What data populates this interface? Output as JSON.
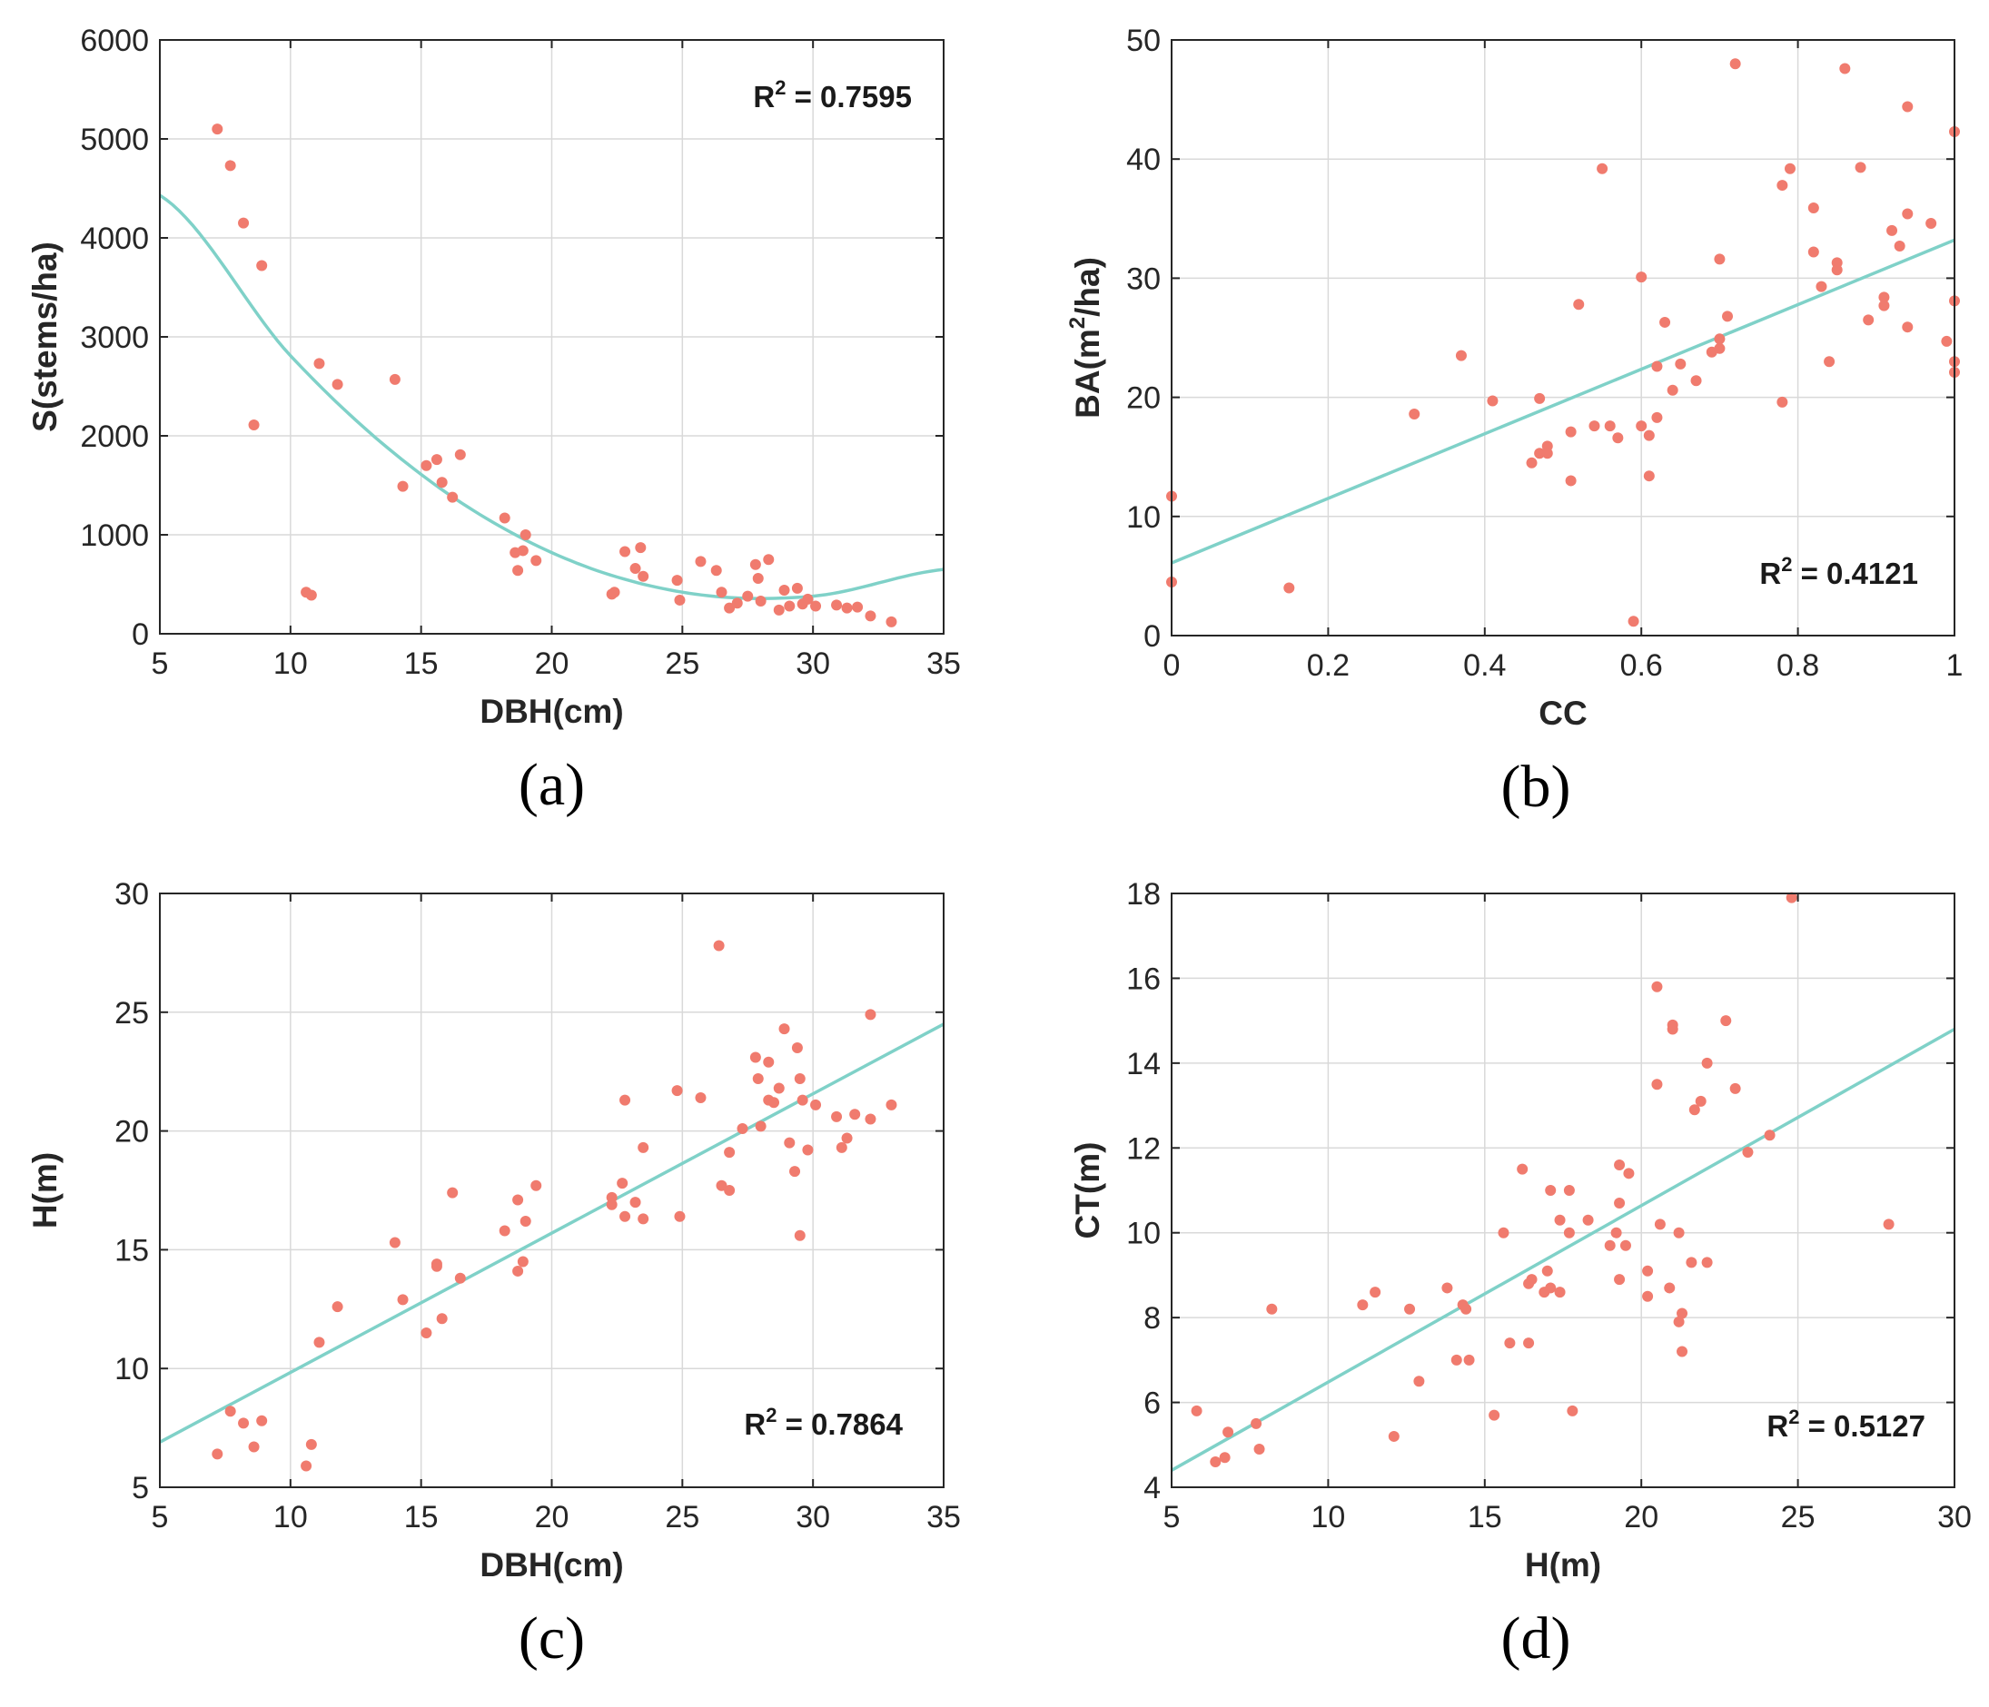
{
  "chart_data": [
    {
      "type": "scatter",
      "panel_label": "(a)",
      "xlabel": "DBH(cm)",
      "ylabel": "S(stems/ha)",
      "xlim": [
        5,
        35
      ],
      "ylim": [
        0,
        6000
      ],
      "xticks": [
        5,
        10,
        15,
        20,
        25,
        30,
        35
      ],
      "yticks": [
        0,
        1000,
        2000,
        3000,
        4000,
        5000,
        6000
      ],
      "annotation": {
        "text": "R² = 0.7595",
        "base": "R",
        "sup": "2",
        "rest": " = 0.7595",
        "placement": "top-right"
      },
      "fit": {
        "kind": "quadratic",
        "x": [
          5,
          10,
          15,
          20,
          25,
          30,
          35
        ],
        "y": [
          4430,
          2810,
          1610,
          820,
          420,
          380,
          650
        ]
      },
      "points": [
        [
          7.2,
          5100
        ],
        [
          7.7,
          4730
        ],
        [
          8.2,
          4150
        ],
        [
          8.9,
          3720
        ],
        [
          8.6,
          2110
        ],
        [
          10.6,
          420
        ],
        [
          10.8,
          390
        ],
        [
          11.1,
          2730
        ],
        [
          11.8,
          2520
        ],
        [
          14,
          2570
        ],
        [
          14.3,
          1490
        ],
        [
          15.2,
          1700
        ],
        [
          15.6,
          1760
        ],
        [
          15.8,
          1530
        ],
        [
          16.2,
          1380
        ],
        [
          16.5,
          1810
        ],
        [
          18.2,
          1170
        ],
        [
          18.6,
          820
        ],
        [
          18.7,
          640
        ],
        [
          18.9,
          840
        ],
        [
          19,
          1000
        ],
        [
          19.4,
          740
        ],
        [
          22.3,
          400
        ],
        [
          22.4,
          420
        ],
        [
          22.8,
          830
        ],
        [
          23.2,
          660
        ],
        [
          23.4,
          870
        ],
        [
          23.5,
          580
        ],
        [
          24.8,
          540
        ],
        [
          24.9,
          340
        ],
        [
          25.7,
          730
        ],
        [
          26.3,
          640
        ],
        [
          26.5,
          420
        ],
        [
          26.8,
          260
        ],
        [
          27.1,
          310
        ],
        [
          27.5,
          380
        ],
        [
          27.8,
          700
        ],
        [
          27.9,
          560
        ],
        [
          28,
          330
        ],
        [
          28.3,
          750
        ],
        [
          28.7,
          240
        ],
        [
          28.9,
          440
        ],
        [
          29.1,
          280
        ],
        [
          29.4,
          460
        ],
        [
          29.6,
          300
        ],
        [
          29.8,
          350
        ],
        [
          30.1,
          280
        ],
        [
          30.9,
          290
        ],
        [
          31.3,
          260
        ],
        [
          31.7,
          270
        ],
        [
          32.2,
          180
        ],
        [
          33,
          120
        ]
      ]
    },
    {
      "type": "scatter",
      "panel_label": "(b)",
      "xlabel": "CC",
      "ylabel": "BA(m²/ha)",
      "ylabel_base": "BA(m",
      "ylabel_sup": "2",
      "ylabel_rest": "/ha)",
      "xlim": [
        0,
        1
      ],
      "ylim": [
        0,
        50
      ],
      "xticks": [
        0,
        0.2,
        0.4,
        0.6,
        0.8,
        1
      ],
      "yticks": [
        0,
        10,
        20,
        30,
        40,
        50
      ],
      "annotation": {
        "text": "R² = 0.4121",
        "base": "R",
        "sup": "2",
        "rest": " = 0.4121",
        "placement": "bottom-right"
      },
      "fit": {
        "kind": "linear",
        "x": [
          0,
          1
        ],
        "y": [
          6.1,
          33.2
        ]
      },
      "points": [
        [
          0,
          11.7
        ],
        [
          0,
          4.5
        ],
        [
          0.15,
          4
        ],
        [
          0.31,
          18.6
        ],
        [
          0.37,
          23.5
        ],
        [
          0.41,
          19.7
        ],
        [
          0.46,
          14.5
        ],
        [
          0.47,
          15.3
        ],
        [
          0.47,
          19.9
        ],
        [
          0.48,
          15.9
        ],
        [
          0.48,
          15.3
        ],
        [
          0.51,
          13
        ],
        [
          0.51,
          17.1
        ],
        [
          0.52,
          27.8
        ],
        [
          0.54,
          17.6
        ],
        [
          0.55,
          39.2
        ],
        [
          0.56,
          17.6
        ],
        [
          0.57,
          16.6
        ],
        [
          0.59,
          1.2
        ],
        [
          0.6,
          17.6
        ],
        [
          0.6,
          30.1
        ],
        [
          0.61,
          16.8
        ],
        [
          0.61,
          13.4
        ],
        [
          0.62,
          18.3
        ],
        [
          0.62,
          22.6
        ],
        [
          0.63,
          26.3
        ],
        [
          0.64,
          20.6
        ],
        [
          0.65,
          22.8
        ],
        [
          0.67,
          21.4
        ],
        [
          0.69,
          23.8
        ],
        [
          0.7,
          24.9
        ],
        [
          0.7,
          24.1
        ],
        [
          0.7,
          31.6
        ],
        [
          0.71,
          26.8
        ],
        [
          0.72,
          48
        ],
        [
          0.78,
          37.8
        ],
        [
          0.78,
          19.6
        ],
        [
          0.79,
          39.2
        ],
        [
          0.82,
          35.9
        ],
        [
          0.82,
          32.2
        ],
        [
          0.83,
          29.3
        ],
        [
          0.84,
          23
        ],
        [
          0.85,
          31.3
        ],
        [
          0.85,
          30.7
        ],
        [
          0.86,
          47.6
        ],
        [
          0.88,
          39.3
        ],
        [
          0.89,
          26.5
        ],
        [
          0.91,
          28.4
        ],
        [
          0.91,
          27.7
        ],
        [
          0.92,
          34
        ],
        [
          0.93,
          32.7
        ],
        [
          0.94,
          35.4
        ],
        [
          0.94,
          25.9
        ],
        [
          0.94,
          44.4
        ],
        [
          0.97,
          34.6
        ],
        [
          0.99,
          24.7
        ],
        [
          1,
          42.3
        ],
        [
          1,
          28.1
        ],
        [
          1,
          23
        ],
        [
          1,
          22.1
        ]
      ]
    },
    {
      "type": "scatter",
      "panel_label": "(c)",
      "xlabel": "DBH(cm)",
      "ylabel": "H(m)",
      "xlim": [
        5,
        35
      ],
      "ylim": [
        5,
        30
      ],
      "xticks": [
        5,
        10,
        15,
        20,
        25,
        30,
        35
      ],
      "yticks": [
        5,
        10,
        15,
        20,
        25,
        30
      ],
      "annotation": {
        "text": "R² = 0.7864",
        "base": "R",
        "sup": "2",
        "rest": " = 0.7864",
        "placement": "bottom-right"
      },
      "fit": {
        "kind": "linear",
        "x": [
          5,
          35
        ],
        "y": [
          6.9,
          24.5
        ]
      },
      "points": [
        [
          7.2,
          6.4
        ],
        [
          7.7,
          8.2
        ],
        [
          8.2,
          7.7
        ],
        [
          8.6,
          6.7
        ],
        [
          8.9,
          7.8
        ],
        [
          10.6,
          5.9
        ],
        [
          10.8,
          6.8
        ],
        [
          11.1,
          11.1
        ],
        [
          11.8,
          12.6
        ],
        [
          14,
          15.3
        ],
        [
          14.3,
          12.9
        ],
        [
          15.2,
          11.5
        ],
        [
          15.6,
          14.4
        ],
        [
          15.6,
          14.3
        ],
        [
          15.8,
          12.1
        ],
        [
          16.2,
          17.4
        ],
        [
          16.5,
          13.8
        ],
        [
          18.2,
          15.8
        ],
        [
          18.7,
          17.1
        ],
        [
          18.7,
          14.1
        ],
        [
          18.9,
          14.5
        ],
        [
          19,
          16.2
        ],
        [
          19.4,
          17.7
        ],
        [
          22.3,
          17.2
        ],
        [
          22.3,
          16.9
        ],
        [
          22.7,
          17.8
        ],
        [
          22.8,
          16.4
        ],
        [
          22.8,
          21.3
        ],
        [
          23.2,
          17
        ],
        [
          23.5,
          19.3
        ],
        [
          23.5,
          16.3
        ],
        [
          24.8,
          21.7
        ],
        [
          24.9,
          16.4
        ],
        [
          25.7,
          21.4
        ],
        [
          26.4,
          27.8
        ],
        [
          26.5,
          17.7
        ],
        [
          26.8,
          17.5
        ],
        [
          26.8,
          19.1
        ],
        [
          27.3,
          20.1
        ],
        [
          27.8,
          23.1
        ],
        [
          27.9,
          22.2
        ],
        [
          28,
          20.2
        ],
        [
          28.3,
          22.9
        ],
        [
          28.3,
          21.3
        ],
        [
          28.5,
          21.2
        ],
        [
          28.7,
          21.8
        ],
        [
          28.9,
          24.3
        ],
        [
          29.1,
          19.5
        ],
        [
          29.3,
          18.3
        ],
        [
          29.4,
          23.5
        ],
        [
          29.5,
          22.2
        ],
        [
          29.5,
          15.6
        ],
        [
          29.6,
          21.3
        ],
        [
          29.8,
          19.2
        ],
        [
          30.1,
          21.1
        ],
        [
          30.9,
          20.6
        ],
        [
          31.1,
          19.3
        ],
        [
          31.3,
          19.7
        ],
        [
          31.6,
          20.7
        ],
        [
          32.2,
          24.9
        ],
        [
          32.2,
          20.5
        ],
        [
          33,
          21.1
        ]
      ]
    },
    {
      "type": "scatter",
      "panel_label": "(d)",
      "xlabel": "H(m)",
      "ylabel": "CT(m)",
      "xlim": [
        5,
        30
      ],
      "ylim": [
        4,
        18
      ],
      "xticks": [
        5,
        10,
        15,
        20,
        25,
        30
      ],
      "yticks": [
        4,
        6,
        8,
        10,
        12,
        14,
        16,
        18
      ],
      "annotation": {
        "text": "R² = 0.5127",
        "base": "R",
        "sup": "2",
        "rest": " = 0.5127",
        "placement": "bottom-right"
      },
      "fit": {
        "kind": "linear",
        "x": [
          5,
          30
        ],
        "y": [
          4.4,
          14.8
        ]
      },
      "points": [
        [
          5.8,
          5.8
        ],
        [
          6.4,
          4.6
        ],
        [
          6.7,
          4.7
        ],
        [
          6.8,
          5.3
        ],
        [
          7.7,
          5.5
        ],
        [
          7.8,
          4.9
        ],
        [
          8.2,
          8.2
        ],
        [
          11.1,
          8.3
        ],
        [
          11.5,
          8.6
        ],
        [
          12.1,
          5.2
        ],
        [
          12.6,
          8.2
        ],
        [
          12.9,
          6.5
        ],
        [
          13.8,
          8.7
        ],
        [
          14.1,
          7
        ],
        [
          14.3,
          8.3
        ],
        [
          14.4,
          8.2
        ],
        [
          14.5,
          7
        ],
        [
          15.3,
          5.7
        ],
        [
          15.6,
          10
        ],
        [
          15.8,
          7.4
        ],
        [
          16.2,
          11.5
        ],
        [
          16.4,
          8.8
        ],
        [
          16.4,
          7.4
        ],
        [
          16.5,
          8.9
        ],
        [
          16.9,
          8.6
        ],
        [
          17,
          9.1
        ],
        [
          17.1,
          8.7
        ],
        [
          17.1,
          11
        ],
        [
          17.4,
          10.3
        ],
        [
          17.4,
          8.6
        ],
        [
          17.7,
          10
        ],
        [
          17.7,
          11
        ],
        [
          17.8,
          5.8
        ],
        [
          18.3,
          10.3
        ],
        [
          19,
          9.7
        ],
        [
          19.2,
          10
        ],
        [
          19.3,
          8.9
        ],
        [
          19.3,
          10.7
        ],
        [
          19.3,
          11.6
        ],
        [
          19.5,
          9.7
        ],
        [
          19.6,
          11.4
        ],
        [
          20.2,
          9.1
        ],
        [
          20.2,
          8.5
        ],
        [
          20.5,
          15.8
        ],
        [
          20.5,
          13.5
        ],
        [
          20.6,
          10.2
        ],
        [
          20.9,
          8.7
        ],
        [
          21,
          14.9
        ],
        [
          21,
          14.8
        ],
        [
          21.2,
          10
        ],
        [
          21.2,
          7.9
        ],
        [
          21.3,
          8.1
        ],
        [
          21.3,
          7.2
        ],
        [
          21.6,
          9.3
        ],
        [
          21.7,
          12.9
        ],
        [
          21.9,
          13.1
        ],
        [
          22.1,
          14
        ],
        [
          22.1,
          9.3
        ],
        [
          22.7,
          15
        ],
        [
          23,
          13.4
        ],
        [
          23.4,
          11.9
        ],
        [
          24.1,
          12.3
        ],
        [
          24.8,
          17.9
        ],
        [
          27.9,
          10.2
        ]
      ]
    }
  ],
  "colors": {
    "points": "#f07b6e",
    "fit_line": "#7fd1c8",
    "grid": "#d9d9d9",
    "axes": "#262626"
  }
}
